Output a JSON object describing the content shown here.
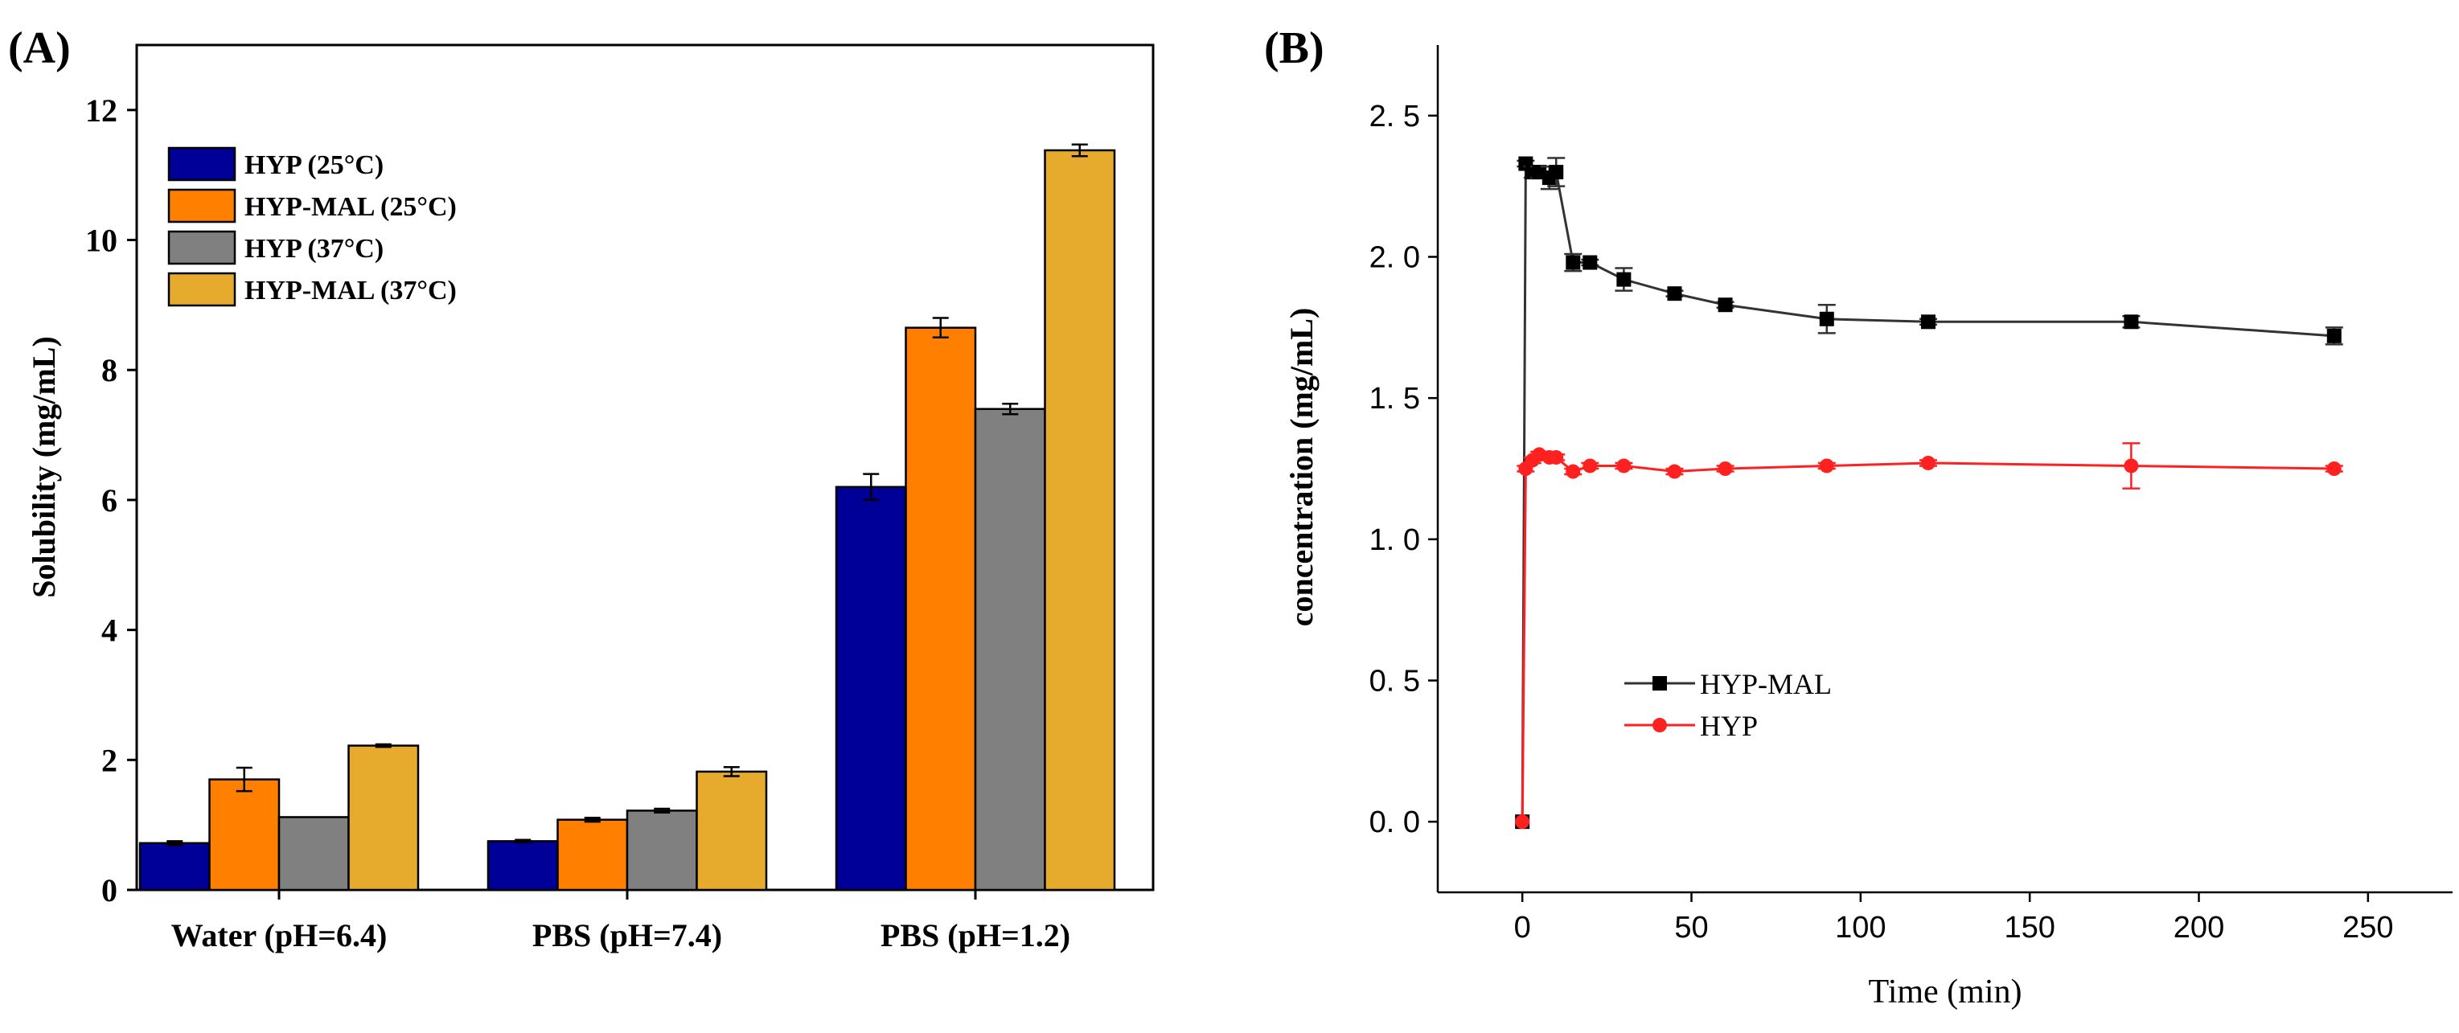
{
  "chart_data": [
    {
      "panel_label": "(A)",
      "type": "bar",
      "title": "",
      "xlabel": "",
      "ylabel": "Solubility (mg/mL)",
      "ylim": [
        0,
        13
      ],
      "yticks": [
        0,
        2,
        4,
        6,
        8,
        10,
        12
      ],
      "grid": false,
      "legend_position": "top-left",
      "categories": [
        "Water (pH=6.4)",
        "PBS (pH=7.4)",
        "PBS (pH=1.2)"
      ],
      "series": [
        {
          "name": "HYP (25°C)",
          "color": "#000099",
          "values": [
            0.72,
            0.75,
            6.2
          ],
          "errors": [
            0.03,
            0.02,
            0.2
          ]
        },
        {
          "name": "HYP-MAL (25°C)",
          "color": "#FF7F00",
          "values": [
            1.7,
            1.08,
            8.65
          ],
          "errors": [
            0.18,
            0.03,
            0.15
          ]
        },
        {
          "name": "HYP (37°C)",
          "color": "#808080",
          "values": [
            1.12,
            1.22,
            7.4
          ],
          "errors": [
            0.0,
            0.03,
            0.08
          ]
        },
        {
          "name": "HYP-MAL (37°C)",
          "color": "#E6AA2D",
          "values": [
            2.22,
            1.82,
            11.38
          ],
          "errors": [
            0.02,
            0.07,
            0.09
          ]
        }
      ]
    },
    {
      "panel_label": "(B)",
      "type": "line",
      "title": "",
      "xlabel": "Time (min)",
      "ylabel": "concentration (mg/mL)",
      "xlim": [
        -25,
        275
      ],
      "ylim": [
        -0.25,
        2.75
      ],
      "xticks": [
        0,
        50,
        100,
        150,
        200,
        250
      ],
      "yticks": [
        0.0,
        0.5,
        1.0,
        1.5,
        2.0,
        2.5
      ],
      "ytick_labels": [
        "0. 0",
        "0. 5",
        "1. 0",
        "1. 5",
        "2. 0",
        "2. 5"
      ],
      "grid": false,
      "legend_position": "center-left",
      "x": [
        0,
        1,
        3,
        5,
        8,
        10,
        15,
        20,
        30,
        45,
        60,
        90,
        120,
        180,
        240
      ],
      "series": [
        {
          "name": "HYP-MAL",
          "color": "#333333",
          "marker": "square",
          "values": [
            0.0,
            2.33,
            2.3,
            2.3,
            2.28,
            2.3,
            1.98,
            1.98,
            1.92,
            1.87,
            1.83,
            1.78,
            1.77,
            1.77,
            1.72
          ],
          "errors": [
            0,
            0.01,
            0.02,
            0.02,
            0.04,
            0.05,
            0.03,
            0.01,
            0.04,
            0.01,
            0.01,
            0.05,
            0.01,
            0.02,
            0.03
          ]
        },
        {
          "name": "HYP",
          "color": "#FF2020",
          "marker": "circle",
          "values": [
            0.0,
            1.25,
            1.28,
            1.3,
            1.29,
            1.29,
            1.24,
            1.26,
            1.26,
            1.24,
            1.25,
            1.26,
            1.27,
            1.26,
            1.25
          ],
          "errors": [
            0,
            0.01,
            0.01,
            0.01,
            0.01,
            0.01,
            0.01,
            0.01,
            0.01,
            0.01,
            0.01,
            0.01,
            0.01,
            0.08,
            0.01
          ]
        }
      ]
    }
  ]
}
